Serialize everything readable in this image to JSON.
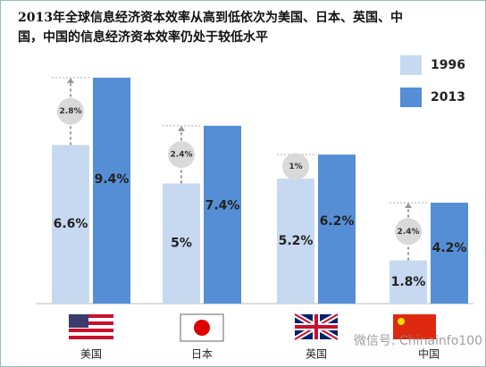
{
  "chart_data": {
    "type": "bar",
    "title": [
      "2013年全球信息经济资本效率从高到低依次为美国、日本、英国、中",
      "国，中国的信息经济资本效率仍处于较低水平"
    ],
    "categories": [
      "美国",
      "日本",
      "英国",
      "中国"
    ],
    "series": [
      {
        "name": "1996",
        "color": "#c6d9f1",
        "values": [
          6.6,
          5,
          5.2,
          1.8
        ],
        "value_labels": [
          "6.6%",
          "5%",
          "5.2%",
          "1.8%"
        ]
      },
      {
        "name": "2013",
        "color": "#558ed5",
        "values": [
          9.4,
          7.4,
          6.2,
          4.2
        ],
        "value_labels": [
          "9.4%",
          "7.4%",
          "6.2%",
          "4.2%"
        ]
      }
    ],
    "annotations": {
      "values": [
        2.8,
        2.4,
        1,
        2.4
      ],
      "value_labels": [
        "2.8%",
        "2.4%",
        "1%",
        "2.4%"
      ]
    },
    "watermark": "微信号: Chinainfo100"
  }
}
